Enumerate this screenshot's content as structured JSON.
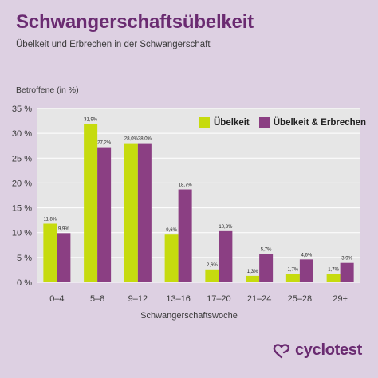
{
  "header": {
    "title": "Schwangerschaftsübelkeit",
    "subtitle": "Übelkeit und Erbrechen in der Schwangerschaft"
  },
  "brand": {
    "name": "cyclotest",
    "icon": "cyclotest-logo-icon"
  },
  "colors": {
    "background": "#ddd0e2",
    "plot_background": "#e6e6e6",
    "series_1": "#c6db0e",
    "series_2": "#8b3f83",
    "title": "#6a2b71"
  },
  "chart_data": {
    "type": "bar",
    "categories": [
      "0–4",
      "5–8",
      "9–12",
      "13–16",
      "17–20",
      "21–24",
      "25–28",
      "29+"
    ],
    "series": [
      {
        "name": "Übelkeit",
        "values": [
          11.8,
          31.9,
          28.0,
          9.6,
          2.6,
          1.3,
          1.7,
          1.7
        ],
        "labels": [
          "11,8%",
          "31,9%",
          "28,0%",
          "9,6%",
          "2,6%",
          "1,3%",
          "1,7%",
          "1,7%"
        ]
      },
      {
        "name": "Übelkeit & Erbrechen",
        "values": [
          9.9,
          27.2,
          28.0,
          18.7,
          10.3,
          5.7,
          4.6,
          3.9
        ],
        "labels": [
          "9,9%",
          "27,2%",
          "28,0%",
          "18,7%",
          "10,3%",
          "5,7%",
          "4,6%",
          "3,9%"
        ]
      }
    ],
    "ylabel": "Betroffene (in %)",
    "xlabel": "Schwangerschaftswoche",
    "ylim": [
      0,
      35
    ],
    "yticks": [
      0,
      5,
      10,
      15,
      20,
      25,
      30,
      35
    ],
    "ytick_labels": [
      "0 %",
      "5 %",
      "10 %",
      "15 %",
      "20 %",
      "25 %",
      "30 %",
      "35 %"
    ],
    "grid": true,
    "legend": "top-right"
  }
}
